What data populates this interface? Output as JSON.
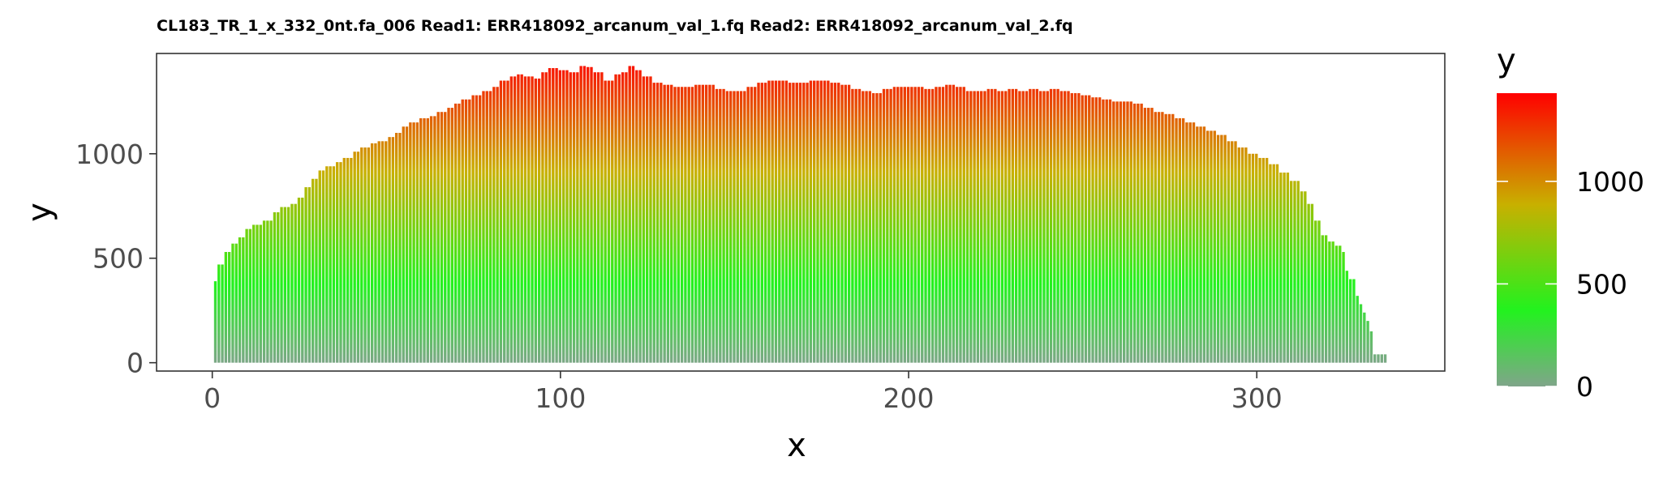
{
  "chart_data": {
    "type": "bar",
    "title": "CL183_TR_1_x_332_0nt.fa_006 Read1: ERR418092_arcanum_val_1.fq Read2: ERR418092_arcanum_val_2.fq",
    "xlabel": "x",
    "ylabel": "y",
    "xlim": [
      -16,
      354
    ],
    "ylim": [
      -40,
      1480
    ],
    "x_ticks": [
      0,
      100,
      200,
      300
    ],
    "y_ticks": [
      0,
      500,
      1000
    ],
    "grid": false,
    "legend": {
      "title": "y",
      "type": "colorbar",
      "position": "right",
      "ticks": [
        0,
        500,
        1000
      ],
      "range": [
        0,
        1430
      ],
      "colors": {
        "low": "#7fa58a",
        "mid": "#22f21e",
        "high": "#ff0000"
      },
      "midpoint": 375
    },
    "series": [
      {
        "points": [
          [
            1,
            390
          ],
          [
            2,
            470
          ],
          [
            4,
            530
          ],
          [
            6,
            570
          ],
          [
            8,
            600
          ],
          [
            10,
            640
          ],
          [
            12,
            660
          ],
          [
            15,
            680
          ],
          [
            18,
            720
          ],
          [
            20,
            745
          ],
          [
            23,
            760
          ],
          [
            25,
            790
          ],
          [
            27,
            840
          ],
          [
            29,
            880
          ],
          [
            31,
            920
          ],
          [
            33,
            940
          ],
          [
            36,
            960
          ],
          [
            38,
            980
          ],
          [
            41,
            1010
          ],
          [
            43,
            1030
          ],
          [
            46,
            1050
          ],
          [
            48,
            1060
          ],
          [
            51,
            1080
          ],
          [
            53,
            1100
          ],
          [
            55,
            1130
          ],
          [
            57,
            1150
          ],
          [
            60,
            1170
          ],
          [
            63,
            1180
          ],
          [
            65,
            1200
          ],
          [
            68,
            1220
          ],
          [
            70,
            1240
          ],
          [
            72,
            1260
          ],
          [
            75,
            1280
          ],
          [
            78,
            1300
          ],
          [
            81,
            1320
          ],
          [
            83,
            1350
          ],
          [
            86,
            1370
          ],
          [
            88,
            1380
          ],
          [
            90,
            1370
          ],
          [
            93,
            1360
          ],
          [
            95,
            1390
          ],
          [
            97,
            1410
          ],
          [
            100,
            1400
          ],
          [
            103,
            1390
          ],
          [
            106,
            1420
          ],
          [
            108,
            1415
          ],
          [
            110,
            1390
          ],
          [
            113,
            1350
          ],
          [
            116,
            1380
          ],
          [
            118,
            1390
          ],
          [
            120,
            1420
          ],
          [
            122,
            1400
          ],
          [
            124,
            1370
          ],
          [
            127,
            1340
          ],
          [
            130,
            1330
          ],
          [
            133,
            1320
          ],
          [
            136,
            1320
          ],
          [
            139,
            1330
          ],
          [
            142,
            1330
          ],
          [
            145,
            1310
          ],
          [
            148,
            1300
          ],
          [
            151,
            1300
          ],
          [
            154,
            1320
          ],
          [
            157,
            1340
          ],
          [
            160,
            1350
          ],
          [
            163,
            1350
          ],
          [
            166,
            1340
          ],
          [
            169,
            1340
          ],
          [
            172,
            1350
          ],
          [
            175,
            1350
          ],
          [
            178,
            1340
          ],
          [
            181,
            1330
          ],
          [
            184,
            1310
          ],
          [
            187,
            1300
          ],
          [
            190,
            1290
          ],
          [
            193,
            1310
          ],
          [
            196,
            1320
          ],
          [
            199,
            1320
          ],
          [
            202,
            1320
          ],
          [
            205,
            1310
          ],
          [
            208,
            1320
          ],
          [
            211,
            1330
          ],
          [
            214,
            1320
          ],
          [
            217,
            1300
          ],
          [
            220,
            1300
          ],
          [
            223,
            1310
          ],
          [
            226,
            1300
          ],
          [
            229,
            1310
          ],
          [
            232,
            1300
          ],
          [
            235,
            1310
          ],
          [
            238,
            1300
          ],
          [
            241,
            1310
          ],
          [
            244,
            1300
          ],
          [
            247,
            1290
          ],
          [
            250,
            1280
          ],
          [
            253,
            1270
          ],
          [
            256,
            1260
          ],
          [
            259,
            1250
          ],
          [
            262,
            1250
          ],
          [
            265,
            1240
          ],
          [
            268,
            1220
          ],
          [
            271,
            1200
          ],
          [
            274,
            1190
          ],
          [
            277,
            1170
          ],
          [
            280,
            1150
          ],
          [
            283,
            1130
          ],
          [
            286,
            1110
          ],
          [
            289,
            1090
          ],
          [
            292,
            1060
          ],
          [
            295,
            1030
          ],
          [
            298,
            1000
          ],
          [
            301,
            980
          ],
          [
            304,
            950
          ],
          [
            307,
            910
          ],
          [
            310,
            870
          ],
          [
            313,
            820
          ],
          [
            315,
            760
          ],
          [
            317,
            680
          ],
          [
            319,
            610
          ],
          [
            321,
            580
          ],
          [
            323,
            560
          ],
          [
            325,
            530
          ],
          [
            326,
            440
          ],
          [
            327,
            400
          ],
          [
            329,
            320
          ],
          [
            330,
            280
          ],
          [
            331,
            240
          ],
          [
            332,
            200
          ],
          [
            333,
            150
          ],
          [
            334,
            40
          ],
          [
            337,
            40
          ]
        ]
      }
    ]
  }
}
